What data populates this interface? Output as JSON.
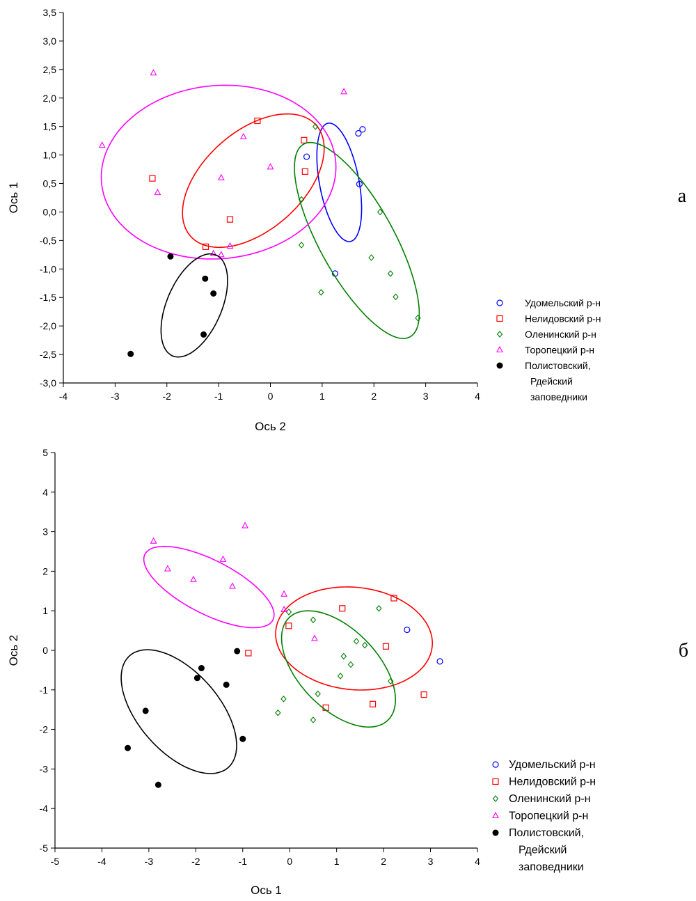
{
  "chart_data": [
    {
      "type": "scatter",
      "panel_label": "а",
      "xlabel": "Ось 2",
      "ylabel": "Ось 1",
      "xlim": [
        -4,
        4
      ],
      "ylim": [
        -3.0,
        3.5
      ],
      "xticks": [
        "-4",
        "-3",
        "-2",
        "-1",
        "0",
        "1",
        "2",
        "3",
        "4"
      ],
      "yticks": [
        "3,5",
        "3,0",
        "2,5",
        "2,0",
        "1,5",
        "1,0",
        "0,5",
        "0,0",
        "-0,5",
        "-1,0",
        "-1,5",
        "-2,0",
        "-2,5",
        "-3,0"
      ],
      "grid": false,
      "legend_position": "right",
      "legend_lines": [
        "",
        "",
        "",
        "",
        "",
        "Рдейский",
        "заповедники"
      ],
      "series": [
        {
          "name": "Удомельский р-н",
          "marker": "circle-open",
          "color": "#0000ff",
          "x": [
            0.7,
            1.7,
            1.78,
            1.72,
            1.25
          ],
          "y": [
            0.97,
            1.38,
            1.45,
            0.49,
            -1.08
          ],
          "ellipse": {
            "cx": 1.33,
            "cy": 0.52,
            "rx": 1.06,
            "ry": 0.38,
            "angle": -78
          }
        },
        {
          "name": "Нелидовский р-н",
          "marker": "square-open",
          "color": "#ff0000",
          "x": [
            -0.25,
            0.65,
            0.67,
            -2.28,
            -0.78,
            -1.25
          ],
          "y": [
            1.6,
            1.26,
            0.71,
            0.59,
            -0.13,
            -0.61
          ],
          "ellipse": {
            "cx": -0.33,
            "cy": 0.55,
            "rx": 1.56,
            "ry": 0.9,
            "angle": 36
          }
        },
        {
          "name": "Оленинский р-н",
          "marker": "diamond-open",
          "color": "#008000",
          "x": [
            0.87,
            0.6,
            0.6,
            2.12,
            1.95,
            2.32,
            2.42,
            0.98,
            2.85
          ],
          "y": [
            1.5,
            0.22,
            -0.58,
            0.0,
            -0.8,
            -1.08,
            -1.49,
            -1.41,
            -1.86
          ],
          "ellipse": {
            "cx": 1.67,
            "cy": -0.5,
            "rx": 1.98,
            "ry": 0.7,
            "angle": -58
          }
        },
        {
          "name": "Торопецкий р-н",
          "marker": "triangle-open",
          "color": "#ff00ff",
          "x": [
            -2.26,
            -3.25,
            1.42,
            -0.52,
            0.0,
            -0.95,
            -2.18,
            -1.1,
            -0.95,
            -0.78
          ],
          "y": [
            2.44,
            1.17,
            2.11,
            1.32,
            0.79,
            0.6,
            0.34,
            -0.73,
            -0.75,
            -0.6
          ],
          "ellipse": {
            "cx": -1.0,
            "cy": 0.7,
            "rx": 2.27,
            "ry": 1.52,
            "angle": 4
          }
        },
        {
          "name": "Полистовский,",
          "marker": "circle-filled",
          "color": "#000000",
          "x": [
            -1.93,
            -1.26,
            -1.1,
            -1.29,
            -2.7
          ],
          "y": [
            -0.78,
            -1.17,
            -1.43,
            -2.15,
            -2.49
          ],
          "ellipse": {
            "cx": -1.47,
            "cy": -1.64,
            "rx": 0.98,
            "ry": 0.52,
            "angle": 63
          }
        }
      ]
    },
    {
      "type": "scatter",
      "panel_label": "б",
      "xlabel": "Ось 1",
      "ylabel": "Ось 2",
      "xlim": [
        -5,
        4
      ],
      "ylim": [
        -5,
        5
      ],
      "xticks": [
        "-5",
        "-4",
        "-3",
        "-2",
        "-1",
        "0",
        "1",
        "2",
        "3",
        "4"
      ],
      "yticks": [
        "5",
        "4",
        "3",
        "2",
        "1",
        "0",
        "-1",
        "-2",
        "-3",
        "-4",
        "-5"
      ],
      "grid": false,
      "legend_position": "bottom-right",
      "legend_lines": [
        "",
        "",
        "",
        "",
        "",
        "Рдейский",
        "заповедники"
      ],
      "series": [
        {
          "name": "Удомельский р-н",
          "marker": "circle-open",
          "color": "#0000ff",
          "x": [
            2.5,
            3.2
          ],
          "y": [
            0.52,
            -0.28
          ],
          "ellipse": null
        },
        {
          "name": "Нелидовский р-н",
          "marker": "square-open",
          "color": "#ff0000",
          "x": [
            2.22,
            1.12,
            -0.02,
            2.05,
            -0.88,
            2.86,
            1.77,
            0.77
          ],
          "y": [
            1.32,
            1.06,
            0.62,
            0.1,
            -0.07,
            -1.12,
            -1.36,
            -1.45
          ],
          "ellipse": {
            "cx": 1.37,
            "cy": 0.3,
            "rx": 1.68,
            "ry": 1.29,
            "angle": -10
          }
        },
        {
          "name": "Оленинский р-н",
          "marker": "diamond-open",
          "color": "#008000",
          "x": [
            -0.02,
            0.5,
            1.9,
            1.42,
            1.6,
            1.15,
            1.3,
            1.08,
            0.6,
            2.15,
            -0.13,
            -0.25,
            0.5
          ],
          "y": [
            0.97,
            0.77,
            1.06,
            0.23,
            0.13,
            -0.15,
            -0.36,
            -0.65,
            -1.1,
            -0.78,
            -1.23,
            -1.58,
            -1.76
          ],
          "ellipse": {
            "cx": 1.04,
            "cy": -0.47,
            "rx": 1.68,
            "ry": 0.9,
            "angle": -55
          }
        },
        {
          "name": "Торопецкий р-н",
          "marker": "triangle-open",
          "color": "#ff00ff",
          "x": [
            -0.95,
            -2.9,
            -1.42,
            -2.6,
            -2.05,
            -1.22,
            -0.12,
            -0.12,
            0.53
          ],
          "y": [
            3.15,
            2.76,
            2.3,
            2.06,
            1.79,
            1.62,
            1.42,
            1.03,
            0.3
          ],
          "ellipse": {
            "cx": -1.72,
            "cy": 1.6,
            "rx": 1.6,
            "ry": 0.65,
            "angle": -33
          }
        },
        {
          "name": "Полистовский,",
          "marker": "circle-filled",
          "color": "#000000",
          "x": [
            -1.12,
            -1.88,
            -1.35,
            -1.97,
            -3.07,
            -3.45,
            -1.0,
            -2.8
          ],
          "y": [
            -0.02,
            -0.45,
            -0.87,
            -0.7,
            -1.53,
            -2.47,
            -2.24,
            -3.4
          ],
          "ellipse": {
            "cx": -2.36,
            "cy": -1.55,
            "rx": 1.77,
            "ry": 0.91,
            "angle": -57
          }
        }
      ]
    }
  ]
}
